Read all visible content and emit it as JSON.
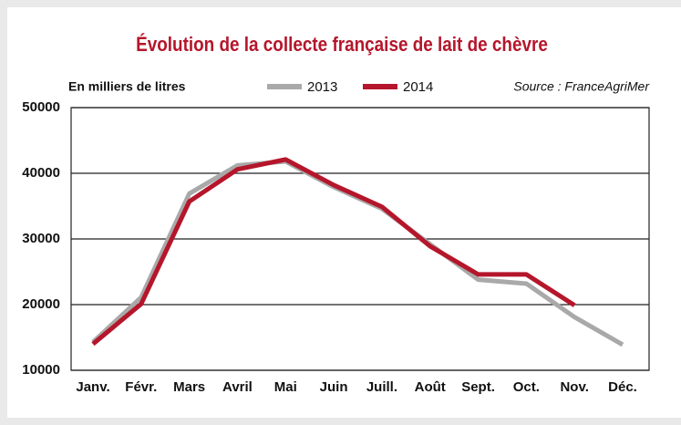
{
  "chart_data": {
    "type": "line",
    "title": "Évolution de la collecte française de lait de chèvre",
    "subtitle": "En milliers de litres",
    "source": "Source : FranceAgriMer",
    "categories": [
      "Janv.",
      "Févr.",
      "Mars",
      "Avril",
      "Mai",
      "Juin",
      "Juill.",
      "Août",
      "Sept.",
      "Oct.",
      "Nov.",
      "Déc."
    ],
    "series": [
      {
        "name": "2013",
        "color": "#a9a9a9",
        "values": [
          14300,
          21100,
          36900,
          41200,
          41800,
          37900,
          34600,
          29200,
          23800,
          23200,
          18100,
          13900
        ]
      },
      {
        "name": "2014",
        "color": "#b5162b",
        "values": [
          14000,
          20100,
          35700,
          40600,
          42100,
          38200,
          34900,
          28900,
          24600,
          24600,
          19900,
          null
        ]
      }
    ],
    "ylim": [
      10000,
      50000
    ],
    "yticks": [
      10000,
      20000,
      30000,
      40000,
      50000
    ],
    "grid": true
  }
}
